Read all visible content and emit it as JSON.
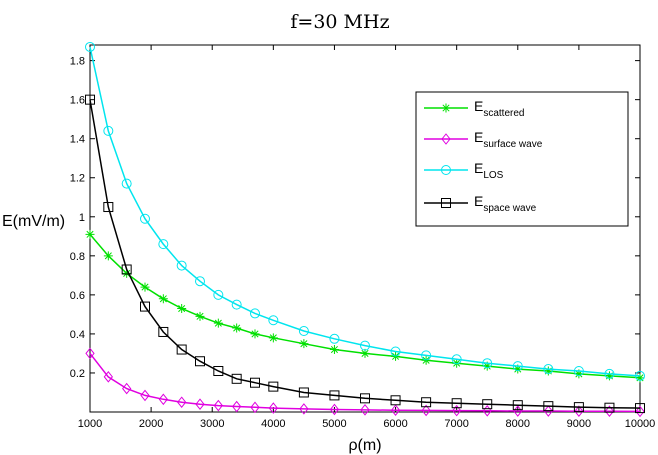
{
  "chart_data": {
    "type": "line",
    "title": "f=30 MHz",
    "xlabel": "ρ(m)",
    "ylabel": "E(mV/m)",
    "xlim": [
      1000,
      10000
    ],
    "ylim": [
      0,
      1.88
    ],
    "xticks": [
      1000,
      2000,
      3000,
      4000,
      5000,
      6000,
      7000,
      8000,
      9000,
      10000
    ],
    "yticks": [
      0.2,
      0.4,
      0.6,
      0.8,
      1,
      1.2,
      1.4,
      1.6,
      1.8
    ],
    "grid": false,
    "legend_position": "top-right",
    "series": [
      {
        "name_main": "E",
        "name_sub": "scattered",
        "color": "#00e000",
        "marker": "star",
        "x": [
          1000,
          1300,
          1600,
          1900,
          2200,
          2500,
          2800,
          3100,
          3400,
          3700,
          4000,
          4500,
          5000,
          5500,
          6000,
          6500,
          7000,
          7500,
          8000,
          8500,
          9000,
          9500,
          10000
        ],
        "y": [
          0.91,
          0.8,
          0.71,
          0.64,
          0.58,
          0.53,
          0.49,
          0.455,
          0.43,
          0.4,
          0.38,
          0.35,
          0.32,
          0.3,
          0.285,
          0.265,
          0.25,
          0.235,
          0.22,
          0.21,
          0.195,
          0.185,
          0.175
        ]
      },
      {
        "name_main": "E",
        "name_sub": "surface wave",
        "color": "#e000e0",
        "marker": "diamond",
        "x": [
          1000,
          1300,
          1600,
          1900,
          2200,
          2500,
          2800,
          3100,
          3400,
          3700,
          4000,
          4500,
          5000,
          5500,
          6000,
          6500,
          7000,
          7500,
          8000,
          8500,
          9000,
          9500,
          10000
        ],
        "y": [
          0.3,
          0.18,
          0.12,
          0.085,
          0.065,
          0.05,
          0.04,
          0.033,
          0.028,
          0.024,
          0.02,
          0.016,
          0.013,
          0.011,
          0.009,
          0.008,
          0.007,
          0.006,
          0.005,
          0.005,
          0.004,
          0.004,
          0.003
        ]
      },
      {
        "name_main": "E",
        "name_sub": "LOS",
        "color": "#00e5ee",
        "marker": "circle",
        "x": [
          1000,
          1300,
          1600,
          1900,
          2200,
          2500,
          2800,
          3100,
          3400,
          3700,
          4000,
          4500,
          5000,
          5500,
          6000,
          6500,
          7000,
          7500,
          8000,
          8500,
          9000,
          9500,
          10000
        ],
        "y": [
          1.87,
          1.44,
          1.17,
          0.99,
          0.86,
          0.75,
          0.67,
          0.6,
          0.55,
          0.505,
          0.47,
          0.415,
          0.375,
          0.34,
          0.31,
          0.29,
          0.27,
          0.25,
          0.235,
          0.22,
          0.21,
          0.195,
          0.185
        ]
      },
      {
        "name_main": "E",
        "name_sub": "space wave",
        "color": "#000000",
        "marker": "square",
        "x": [
          1000,
          1300,
          1600,
          1900,
          2200,
          2500,
          2800,
          3100,
          3400,
          3700,
          4000,
          4500,
          5000,
          5500,
          6000,
          6500,
          7000,
          7500,
          8000,
          8500,
          9000,
          9500,
          10000
        ],
        "y": [
          1.6,
          1.05,
          0.73,
          0.54,
          0.41,
          0.32,
          0.26,
          0.21,
          0.17,
          0.15,
          0.13,
          0.1,
          0.085,
          0.07,
          0.06,
          0.05,
          0.045,
          0.04,
          0.035,
          0.03,
          0.025,
          0.022,
          0.02
        ]
      }
    ]
  }
}
